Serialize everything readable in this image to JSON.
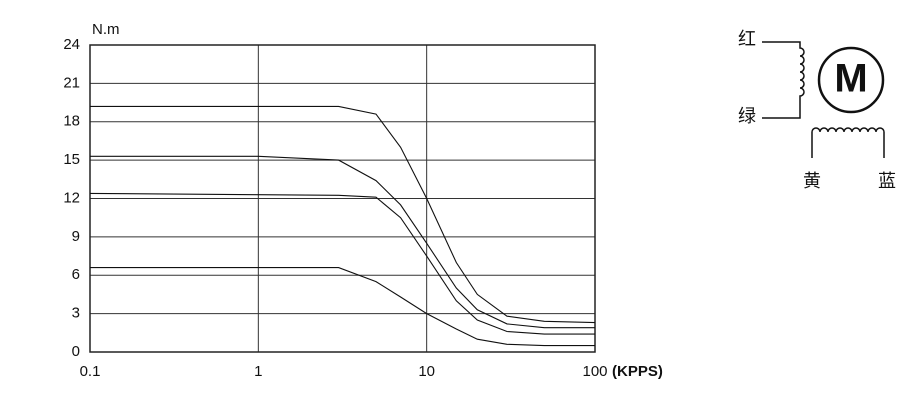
{
  "chart_data": {
    "type": "line",
    "y_label": "N.m",
    "x_unit": "(KPPS)",
    "log_x": true,
    "grid": true,
    "xlim": [
      0.1,
      100
    ],
    "xticks": [
      0.1,
      1,
      10,
      100
    ],
    "ylim": [
      0,
      24
    ],
    "yticks": [
      0,
      3,
      6,
      9,
      12,
      15,
      18,
      21,
      24
    ],
    "x": [
      0.1,
      1,
      3,
      5,
      7,
      10,
      15,
      20,
      30,
      50,
      100
    ],
    "series": [
      {
        "color": "#111111",
        "values": [
          19.2,
          19.2,
          19.2,
          18.6,
          16,
          12,
          7,
          4.5,
          2.8,
          2.4,
          2.3
        ]
      },
      {
        "color": "#111111",
        "values": [
          15.3,
          15.3,
          15,
          13.4,
          11.5,
          8.5,
          5,
          3.3,
          2.2,
          1.9,
          1.9
        ]
      },
      {
        "color": "#111111",
        "values": [
          12.4,
          12.3,
          12.25,
          12.1,
          10.5,
          7.5,
          4,
          2.5,
          1.6,
          1.4,
          1.4
        ]
      },
      {
        "color": "#111111",
        "values": [
          6.6,
          6.6,
          6.6,
          5.5,
          4.3,
          3,
          1.8,
          1,
          0.6,
          0.5,
          0.5
        ]
      }
    ]
  },
  "wiring": {
    "motor": "M",
    "leads": [
      "红",
      "绿",
      "黄",
      "蓝"
    ]
  }
}
